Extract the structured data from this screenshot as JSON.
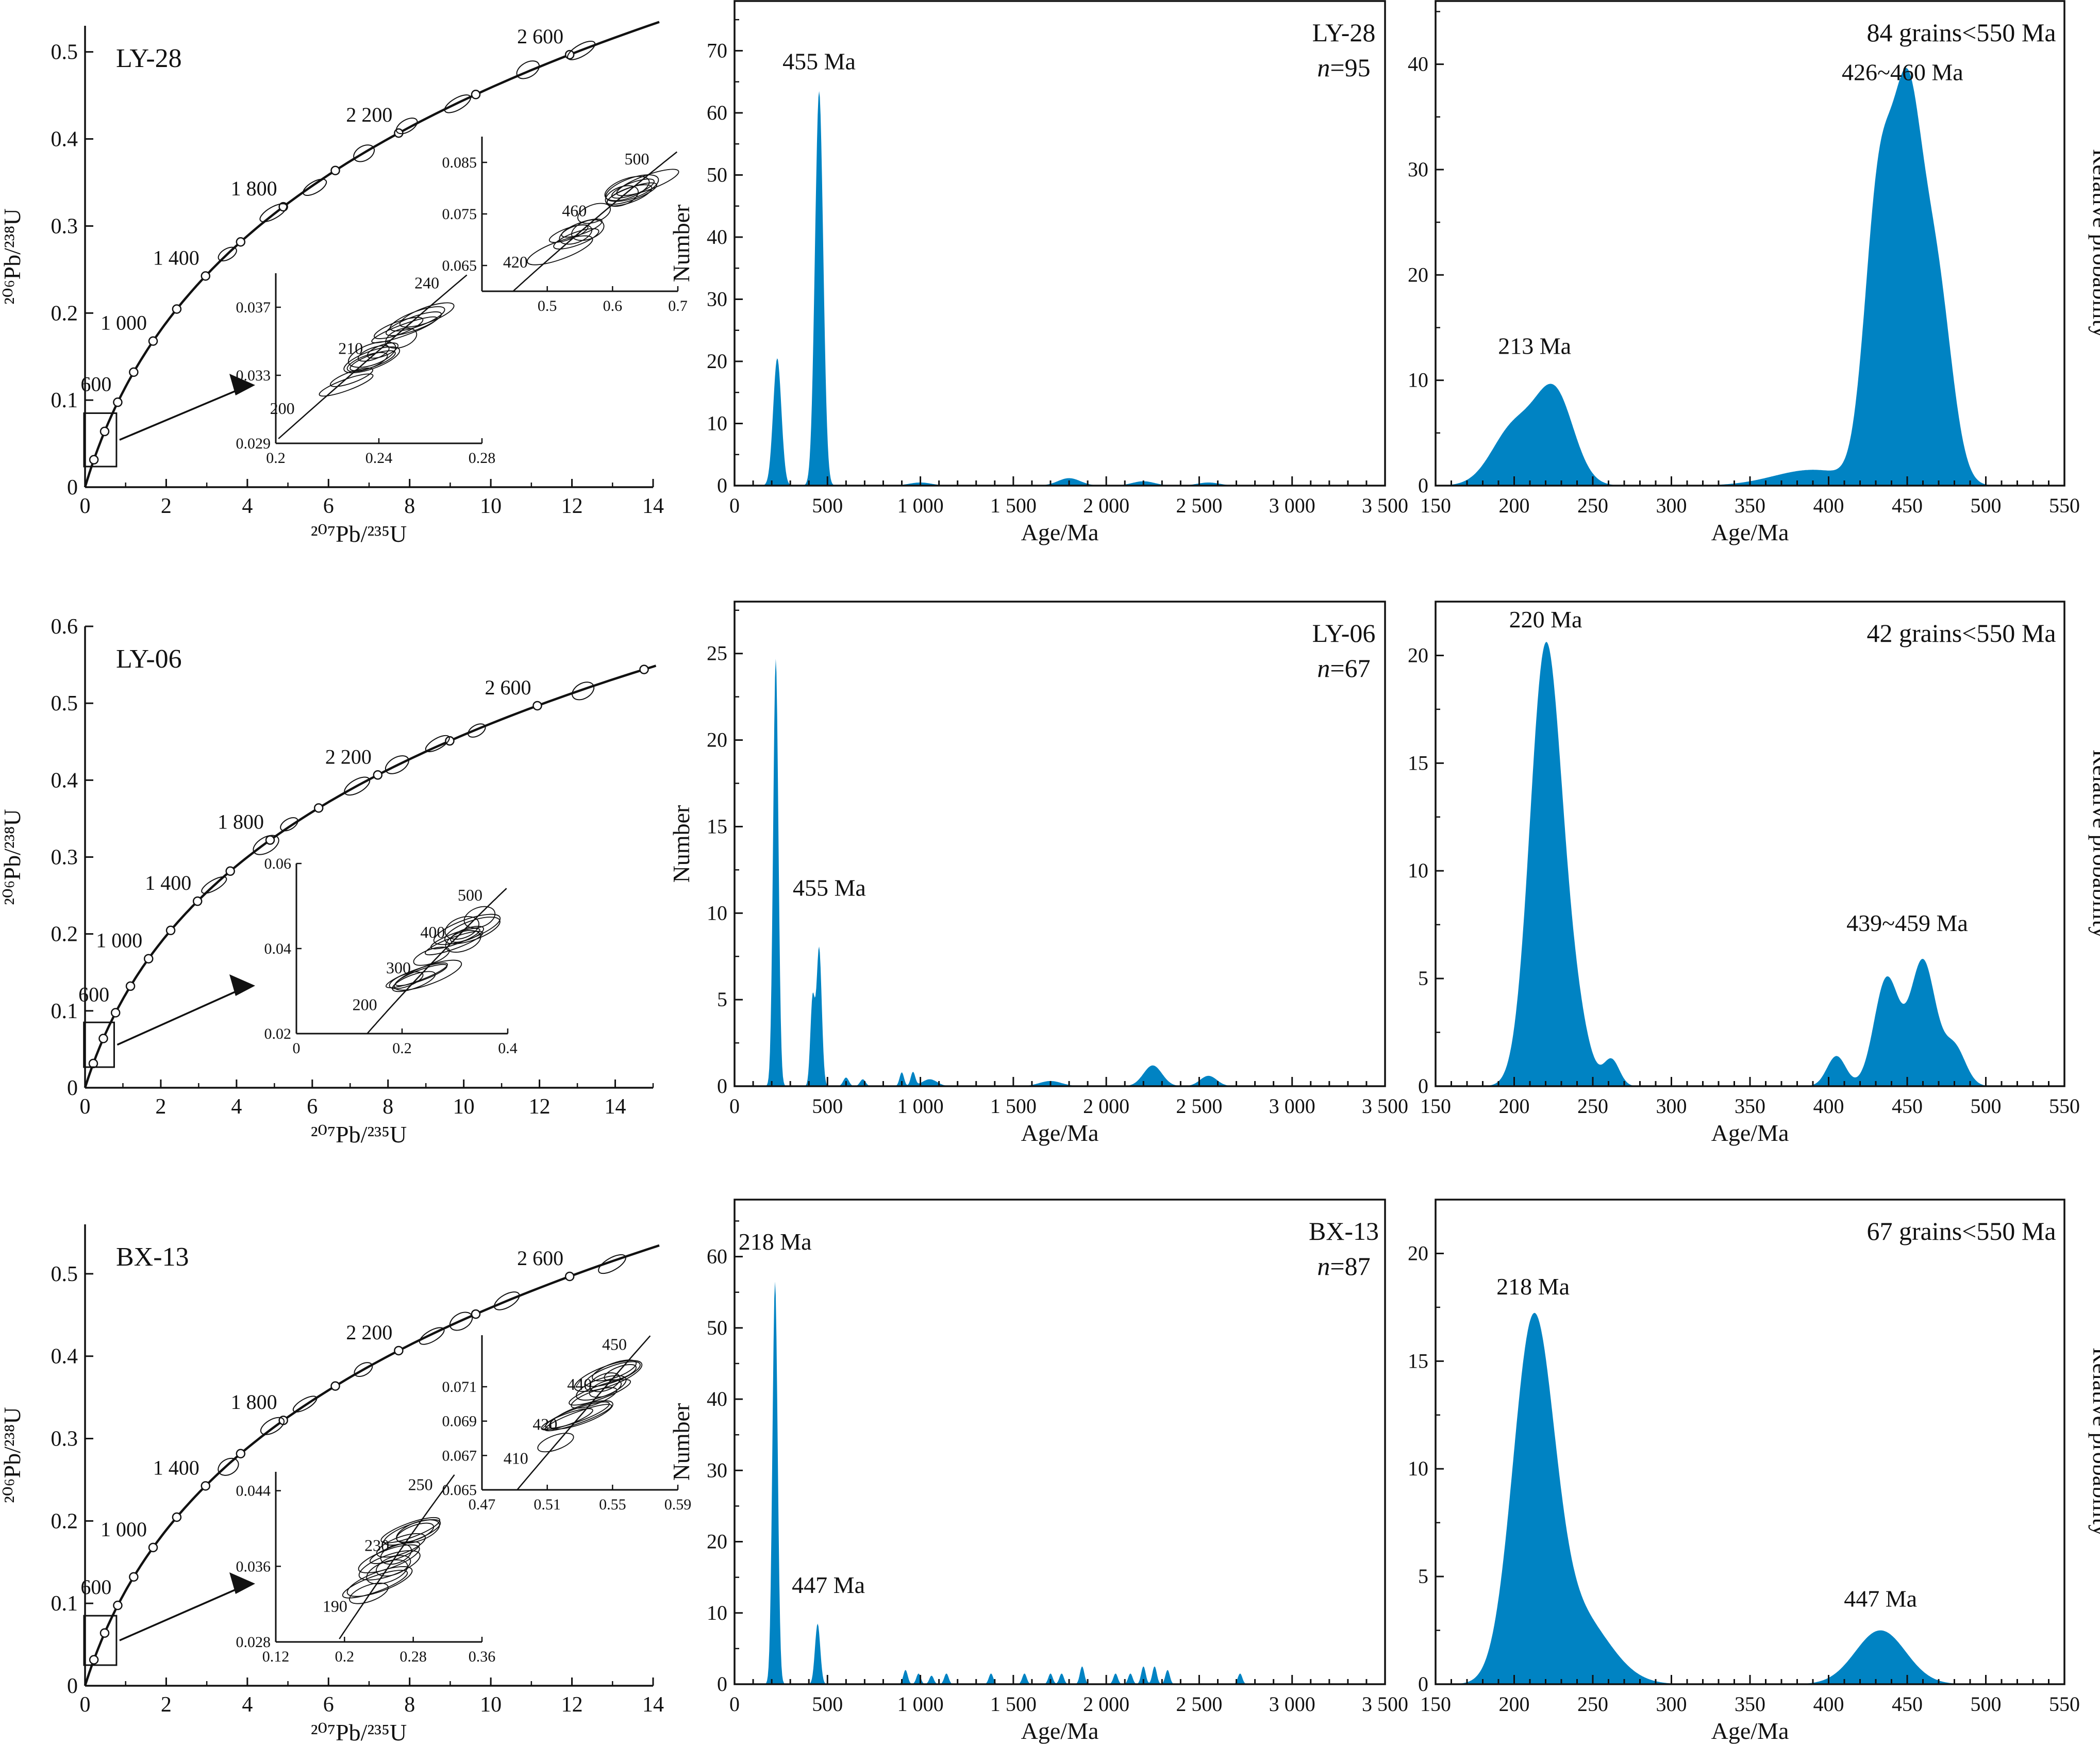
{
  "rows": [
    {
      "sample": "LY-28",
      "concordia": {
        "title": "LY-28",
        "xlabel": "²⁰⁷Pb/²³⁵U",
        "ylabel": "²⁰⁶Pb/²³⁸U",
        "xlim": [
          0,
          14
        ],
        "ylim": [
          0,
          0.53
        ],
        "xticks": [
          0,
          2,
          4,
          6,
          8,
          10,
          12,
          14
        ],
        "yticks": [
          0,
          0.1,
          0.2,
          0.3,
          0.4,
          0.5
        ],
        "curve_labels": [
          "600",
          "1 000",
          "1 400",
          "1 800",
          "2 200",
          "2 600"
        ],
        "insets": [
          {
            "xlim": [
              0.2,
              0.28
            ],
            "ylim": [
              0.029,
              0.039
            ],
            "xticks": [
              0.2,
              0.24,
              0.28
            ],
            "yticks": [
              0.029,
              0.033,
              0.037
            ],
            "age_labels": [
              "200",
              "210",
              "240"
            ]
          },
          {
            "xlim": [
              0.4,
              0.7
            ],
            "ylim": [
              0.06,
              0.09
            ],
            "xticks": [
              0.5,
              0.6,
              0.7
            ],
            "yticks": [
              0.065,
              0.075,
              0.085
            ],
            "age_labels": [
              "420",
              "460",
              "500"
            ]
          }
        ]
      },
      "histogram": {
        "type": "area",
        "title": "LY-28",
        "n_label": "n",
        "n_value": "=95",
        "xlabel": "Age/Ma",
        "ylabel": "Number",
        "xlim": [
          0,
          3500
        ],
        "ylim": [
          0,
          78
        ],
        "xticks": [
          0,
          500,
          1000,
          1500,
          2000,
          2500,
          3000,
          3500
        ],
        "xtick_labels": [
          "0",
          "500",
          "1 000",
          "1 500",
          "2 000",
          "2 500",
          "3 000",
          "3 500"
        ],
        "yticks": [
          0,
          10,
          20,
          30,
          40,
          50,
          60,
          70
        ],
        "peaks": [
          [
            230,
            20.5,
            22
          ],
          [
            455,
            63.5,
            22
          ],
          [
            1000,
            0.5,
            60
          ],
          [
            1800,
            1.2,
            60
          ],
          [
            2200,
            0.7,
            60
          ],
          [
            2550,
            0.5,
            60
          ]
        ],
        "annotations": [
          {
            "text": "455 Ma",
            "x": 455,
            "y": 67
          }
        ]
      },
      "probability": {
        "type": "area",
        "title": "84 grains<550 Ma",
        "xlabel": "Age/Ma",
        "ylabel": "Relative probability",
        "xlim": [
          150,
          550
        ],
        "ylim": [
          0,
          46
        ],
        "xticks": [
          150,
          200,
          250,
          300,
          350,
          400,
          450,
          500,
          550
        ],
        "yticks": [
          0,
          10,
          20,
          30,
          40
        ],
        "peaks": [
          [
            200,
            5.5,
            14
          ],
          [
            226,
            8.5,
            12
          ],
          [
            390,
            1.5,
            25
          ],
          [
            432,
            27,
            9
          ],
          [
            450,
            32,
            9
          ],
          [
            468,
            19.5,
            10
          ]
        ],
        "annotations": [
          {
            "text": "213 Ma",
            "x": 213,
            "y": 12.5
          },
          {
            "text": "426~460 Ma",
            "x": 447,
            "y": 38.5
          }
        ]
      }
    },
    {
      "sample": "LY-06",
      "concordia": {
        "title": "LY-06",
        "xlabel": "²⁰⁷Pb/²³⁵U",
        "ylabel": "²⁰⁶Pb/²³⁸U",
        "xlim": [
          0,
          15
        ],
        "ylim": [
          0,
          0.6
        ],
        "xticks": [
          0,
          2,
          4,
          6,
          8,
          10,
          12,
          14
        ],
        "yticks": [
          0,
          0.1,
          0.2,
          0.3,
          0.4,
          0.5,
          0.6
        ],
        "curve_labels": [
          "600",
          "1 000",
          "1 400",
          "1 800",
          "2 200",
          "2 600"
        ],
        "insets": [
          {
            "xlim": [
              0,
              0.4
            ],
            "ylim": [
              0.02,
              0.06
            ],
            "xticks": [
              0,
              0.2,
              0.4
            ],
            "yticks": [
              0.02,
              0.04,
              0.06
            ],
            "age_labels": [
              "200",
              "300",
              "400",
              "500"
            ]
          }
        ]
      },
      "histogram": {
        "type": "area",
        "title": "LY-06",
        "n_label": "n",
        "n_value": "=67",
        "xlabel": "Age/Ma",
        "ylabel": "Number",
        "xlim": [
          0,
          3500
        ],
        "ylim": [
          0,
          28
        ],
        "xticks": [
          0,
          500,
          1000,
          1500,
          2000,
          2500,
          3000,
          3500
        ],
        "xtick_labels": [
          "0",
          "500",
          "1 000",
          "1 500",
          "2 000",
          "2 500",
          "3 000",
          "3 500"
        ],
        "yticks": [
          0,
          5,
          10,
          15,
          20,
          25
        ],
        "peaks": [
          [
            222,
            24.7,
            14
          ],
          [
            420,
            5,
            12
          ],
          [
            455,
            8,
            14
          ],
          [
            600,
            0.5,
            15
          ],
          [
            690,
            0.4,
            15
          ],
          [
            900,
            0.8,
            12
          ],
          [
            960,
            0.8,
            12
          ],
          [
            1050,
            0.4,
            40
          ],
          [
            1700,
            0.3,
            60
          ],
          [
            2250,
            1.2,
            50
          ],
          [
            2550,
            0.6,
            45
          ]
        ],
        "annotations": [
          {
            "text": "455 Ma",
            "x": 510,
            "y": 11
          }
        ]
      },
      "probability": {
        "type": "area",
        "title": "42 grains<550 Ma",
        "xlabel": "Age/Ma",
        "ylabel": "Relative probability",
        "xlim": [
          150,
          550
        ],
        "ylim": [
          0,
          22.5
        ],
        "xticks": [
          150,
          200,
          250,
          300,
          350,
          400,
          450,
          500,
          550
        ],
        "yticks": [
          0,
          5,
          10,
          15,
          20
        ],
        "peaks": [
          [
            220,
            20.2,
            10
          ],
          [
            238,
            3,
            9
          ],
          [
            262,
            1.2,
            5
          ],
          [
            405,
            1.4,
            6
          ],
          [
            437,
            5,
            8
          ],
          [
            460,
            5.8,
            8
          ],
          [
            480,
            1.8,
            7
          ]
        ],
        "annotations": [
          {
            "text": "220 Ma",
            "x": 220,
            "y": 21.3
          },
          {
            "text": "439~459 Ma",
            "x": 450,
            "y": 7.2
          }
        ]
      }
    },
    {
      "sample": "BX-13",
      "concordia": {
        "title": "BX-13",
        "xlabel": "²⁰⁷Pb/²³⁵U",
        "ylabel": "²⁰⁶Pb/²³⁸U",
        "xlim": [
          0,
          14
        ],
        "ylim": [
          0,
          0.56
        ],
        "xticks": [
          0,
          2,
          4,
          6,
          8,
          10,
          12,
          14
        ],
        "yticks": [
          0,
          0.1,
          0.2,
          0.3,
          0.4,
          0.5
        ],
        "curve_labels": [
          "600",
          "1 000",
          "1 400",
          "1 800",
          "2 200",
          "2 600"
        ],
        "insets": [
          {
            "xlim": [
              0.12,
              0.36
            ],
            "ylim": [
              0.028,
              0.046
            ],
            "xticks": [
              0.12,
              0.2,
              0.28,
              0.36
            ],
            "yticks": [
              0.028,
              0.036,
              0.044
            ],
            "age_labels": [
              "190",
              "230",
              "250"
            ]
          },
          {
            "xlim": [
              0.47,
              0.59
            ],
            "ylim": [
              0.065,
              0.074
            ],
            "xticks": [
              0.47,
              0.51,
              0.55,
              0.59
            ],
            "yticks": [
              0.065,
              0.067,
              0.069,
              0.071
            ],
            "age_labels": [
              "410",
              "420",
              "440",
              "450"
            ]
          }
        ]
      },
      "histogram": {
        "type": "area",
        "title": "BX-13",
        "n_label": "n",
        "n_value": "=87",
        "xlabel": "Age/Ma",
        "ylabel": "Number",
        "xlim": [
          0,
          3500
        ],
        "ylim": [
          0,
          68
        ],
        "xticks": [
          0,
          500,
          1000,
          1500,
          2000,
          2500,
          3000,
          3500
        ],
        "xtick_labels": [
          "0",
          "500",
          "1 000",
          "1 500",
          "2 000",
          "2 500",
          "3 000",
          "3 500"
        ],
        "yticks": [
          0,
          10,
          20,
          30,
          40,
          50,
          60
        ],
        "peaks": [
          [
            218,
            56.5,
            14
          ],
          [
            447,
            8.5,
            14
          ],
          [
            920,
            2,
            12
          ],
          [
            990,
            1.5,
            12
          ],
          [
            1060,
            1.2,
            12
          ],
          [
            1140,
            1.5,
            12
          ],
          [
            1380,
            1.5,
            12
          ],
          [
            1560,
            1.5,
            12
          ],
          [
            1700,
            1.5,
            12
          ],
          [
            1760,
            1.5,
            12
          ],
          [
            1870,
            2.5,
            12
          ],
          [
            2050,
            1.5,
            12
          ],
          [
            2130,
            1.5,
            12
          ],
          [
            2200,
            2.5,
            12
          ],
          [
            2260,
            2.5,
            12
          ],
          [
            2330,
            2,
            12
          ],
          [
            2720,
            1.5,
            12
          ]
        ],
        "annotations": [
          {
            "text": "218 Ma",
            "x": 218,
            "y": 61
          },
          {
            "text": "447 Ma",
            "x": 505,
            "y": 12.8
          }
        ]
      },
      "probability": {
        "type": "area",
        "title": "67 grains<550 Ma",
        "xlabel": "Age/Ma",
        "ylabel": "Relative probability",
        "xlim": [
          150,
          550
        ],
        "ylim": [
          0,
          22.5
        ],
        "xticks": [
          150,
          200,
          250,
          300,
          350,
          400,
          450,
          500,
          550
        ],
        "yticks": [
          0,
          5,
          10,
          15,
          20
        ],
        "peaks": [
          [
            212,
            16,
            13
          ],
          [
            240,
            3.2,
            20
          ],
          [
            433,
            2.5,
            16
          ]
        ],
        "annotations": [
          {
            "text": "218 Ma",
            "x": 212,
            "y": 18.1
          },
          {
            "text": "447 Ma",
            "x": 433,
            "y": 3.6
          }
        ]
      }
    }
  ],
  "colors": {
    "fill": "#0083c3",
    "axis": "#111111"
  }
}
